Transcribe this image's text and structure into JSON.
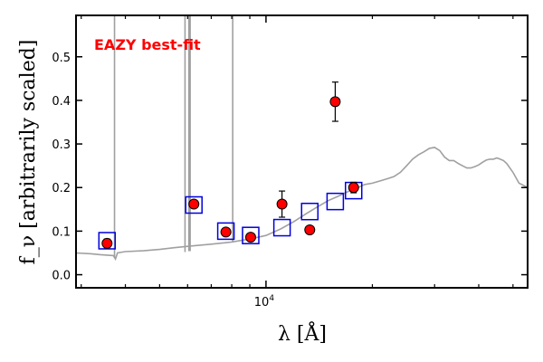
{
  "chart_data": {
    "type": "scatter",
    "annotation": "EAZY best-fit",
    "xlabel": "λ [Å]",
    "ylabel": "f_ν [arbitrarily scaled]",
    "x_scale": "log",
    "xlim": [
      2900,
      55000
    ],
    "ylim": [
      -0.03,
      0.595
    ],
    "x_tick_labels": [
      {
        "value": 10000,
        "label": "10",
        "exp": "4"
      }
    ],
    "x_minor_ticks": [
      3000,
      4000,
      5000,
      6000,
      7000,
      8000,
      9000,
      20000,
      30000,
      40000,
      50000
    ],
    "y_ticks": [
      0.0,
      0.1,
      0.2,
      0.3,
      0.4,
      0.5
    ],
    "y_tick_labels": [
      "0.0",
      "0.1",
      "0.2",
      "0.3",
      "0.4",
      "0.5"
    ],
    "grid": false,
    "colors": {
      "observed": "#ff0000",
      "model_photometry": "#0000dd",
      "template": "#a0a0a0",
      "annotation": "#ff0000"
    },
    "observed_photometry": [
      {
        "x": 3550,
        "y": 0.072,
        "err": 0.01
      },
      {
        "x": 6250,
        "y": 0.162,
        "err": 0.006
      },
      {
        "x": 7700,
        "y": 0.098,
        "err": 0.006
      },
      {
        "x": 9050,
        "y": 0.086,
        "err": 0.008
      },
      {
        "x": 11100,
        "y": 0.162,
        "err": 0.03
      },
      {
        "x": 13300,
        "y": 0.103,
        "err": 0.008
      },
      {
        "x": 15700,
        "y": 0.397,
        "err": 0.045
      },
      {
        "x": 17700,
        "y": 0.2,
        "err": 0.012
      }
    ],
    "model_photometry": [
      {
        "x": 3550,
        "y": 0.078
      },
      {
        "x": 6250,
        "y": 0.16
      },
      {
        "x": 7700,
        "y": 0.1
      },
      {
        "x": 9050,
        "y": 0.09
      },
      {
        "x": 11100,
        "y": 0.108
      },
      {
        "x": 13300,
        "y": 0.145
      },
      {
        "x": 15700,
        "y": 0.168
      },
      {
        "x": 17700,
        "y": 0.193
      }
    ],
    "template_spectrum": {
      "x": [
        2900,
        3200,
        3400,
        3700,
        3750,
        3800,
        4000,
        4500,
        5000,
        5500,
        6000,
        7000,
        8000,
        9000,
        10000,
        11000,
        12000,
        13000,
        14000,
        15000,
        16000,
        17000,
        18000,
        19000,
        20000,
        21000,
        22000,
        23000,
        24000,
        25000,
        26000,
        27000,
        28000,
        29000,
        30000,
        31000,
        32000,
        33000,
        34000,
        35000,
        36000,
        37000,
        38000,
        39000,
        40000,
        41000,
        42000,
        43000,
        44000,
        45000,
        46000,
        47000,
        48000,
        50000,
        52000,
        55000
      ],
      "y": [
        0.05,
        0.048,
        0.046,
        0.044,
        0.036,
        0.05,
        0.053,
        0.055,
        0.058,
        0.062,
        0.065,
        0.07,
        0.075,
        0.082,
        0.09,
        0.105,
        0.122,
        0.14,
        0.156,
        0.17,
        0.18,
        0.19,
        0.198,
        0.207,
        0.21,
        0.215,
        0.22,
        0.225,
        0.235,
        0.25,
        0.265,
        0.275,
        0.282,
        0.29,
        0.292,
        0.285,
        0.27,
        0.262,
        0.262,
        0.255,
        0.25,
        0.245,
        0.245,
        0.248,
        0.252,
        0.258,
        0.263,
        0.265,
        0.265,
        0.268,
        0.265,
        0.262,
        0.255,
        0.235,
        0.21,
        0.2
      ]
    },
    "emission_lines": [
      {
        "x": 3727,
        "base": 0.038
      },
      {
        "x": 5900,
        "base": 0.052
      },
      {
        "x": 6050,
        "base": 0.054
      },
      {
        "x": 6100,
        "base": 0.054
      },
      {
        "x": 8050,
        "base": 0.075
      }
    ]
  }
}
